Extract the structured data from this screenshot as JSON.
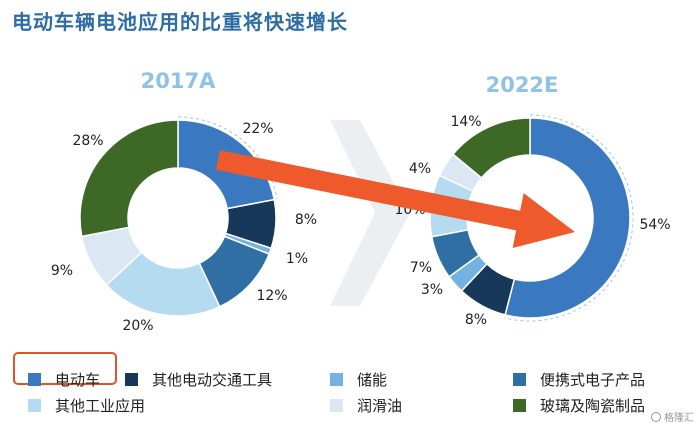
{
  "title": "电动车辆电池应用的比重将快速增长",
  "watermark": "格隆汇",
  "colors": {
    "title": "#2e6da4",
    "year_label": "#8ec2e6",
    "arrow": "#ee5a2c",
    "highlight": "#e0542c"
  },
  "chart_data": [
    {
      "type": "pie",
      "title": "2017A",
      "categories": [
        "电动车",
        "其他电动交通工具",
        "储能",
        "便携式电子产品",
        "其他工业应用",
        "润滑油",
        "玻璃及陶瓷制品"
      ],
      "values": [
        22,
        8,
        1,
        12,
        20,
        9,
        28
      ],
      "labels": [
        "22%",
        "8%",
        "1%",
        "12%",
        "20%",
        "9%",
        "28%"
      ],
      "colors": [
        "#3a78c0",
        "#173858",
        "#74b2e2",
        "#2f6fa4",
        "#b5dbf1",
        "#dbe8f3",
        "#3d6825"
      ],
      "donut": true
    },
    {
      "type": "pie",
      "title": "2022E",
      "categories": [
        "电动车",
        "其他电动交通工具",
        "储能",
        "便携式电子产品",
        "其他工业应用",
        "润滑油",
        "玻璃及陶瓷制品"
      ],
      "values": [
        54,
        8,
        3,
        7,
        10,
        4,
        14
      ],
      "labels": [
        "54%",
        "8%",
        "3%",
        "7%",
        "10%",
        "4%",
        "14%"
      ],
      "colors": [
        "#3a78c0",
        "#173858",
        "#74b2e2",
        "#2f6fa4",
        "#b5dbf1",
        "#dbe8f3",
        "#3d6825"
      ],
      "donut": true
    }
  ],
  "legend": [
    {
      "label": "电动车",
      "color": "#3a78c0"
    },
    {
      "label": "其他电动交通工具",
      "color": "#173858"
    },
    {
      "label": "储能",
      "color": "#74b2e2"
    },
    {
      "label": "便携式电子产品",
      "color": "#2f6fa4"
    },
    {
      "label": "其他工业应用",
      "color": "#b5dbf1"
    },
    {
      "label": "润滑油",
      "color": "#dbe8f3"
    },
    {
      "label": "玻璃及陶瓷制品",
      "color": "#3d6825"
    }
  ]
}
